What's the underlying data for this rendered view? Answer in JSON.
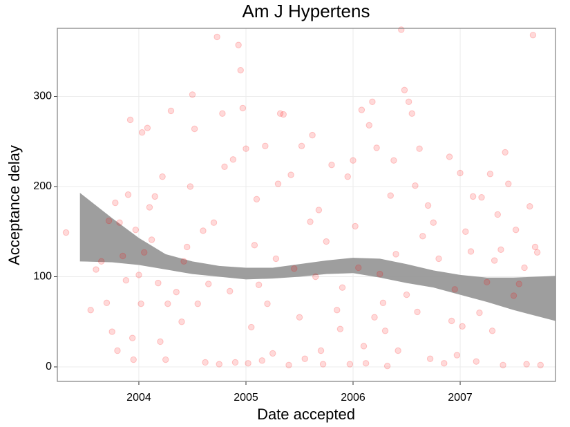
{
  "chart_data": {
    "type": "scatter",
    "title": "Am J Hypertens",
    "x_label": "Date accepted",
    "y_label": "Acceptance delay",
    "xlim": [
      2003.239,
      2007.89
    ],
    "ylim": [
      -16.1,
      375.5
    ],
    "xticks": [
      2004,
      2005,
      2006,
      2007
    ],
    "yticks": [
      0,
      100,
      200,
      300
    ],
    "grid": true,
    "series": [
      {
        "color": "#ff0000",
        "x": [
          2003.32,
          2003.55,
          2003.6,
          2003.65,
          2003.7,
          2003.72,
          2003.75,
          2003.78,
          2003.8,
          2003.82,
          2003.85,
          2003.88,
          2003.9,
          2003.92,
          2003.94,
          2003.95,
          2003.97,
          2004.0,
          2004.02,
          2004.03,
          2004.05,
          2004.08,
          2004.1,
          2004.12,
          2004.15,
          2004.18,
          2004.2,
          2004.22,
          2004.25,
          2004.27,
          2004.3,
          2004.35,
          2004.4,
          2004.42,
          2004.45,
          2004.48,
          2004.5,
          2004.52,
          2004.55,
          2004.6,
          2004.62,
          2004.65,
          2004.7,
          2004.73,
          2004.75,
          2004.78,
          2004.8,
          2004.85,
          2004.88,
          2004.9,
          2004.93,
          2004.95,
          2004.97,
          2005.0,
          2005.02,
          2005.05,
          2005.08,
          2005.1,
          2005.12,
          2005.15,
          2005.18,
          2005.2,
          2005.25,
          2005.28,
          2005.3,
          2005.32,
          2005.35,
          2005.4,
          2005.42,
          2005.45,
          2005.5,
          2005.52,
          2005.55,
          2005.6,
          2005.62,
          2005.65,
          2005.68,
          2005.7,
          2005.72,
          2005.75,
          2005.8,
          2005.85,
          2005.88,
          2005.9,
          2005.95,
          2005.97,
          2006.0,
          2006.02,
          2006.05,
          2006.08,
          2006.1,
          2006.12,
          2006.15,
          2006.18,
          2006.2,
          2006.22,
          2006.25,
          2006.28,
          2006.3,
          2006.32,
          2006.35,
          2006.38,
          2006.4,
          2006.42,
          2006.45,
          2006.48,
          2006.5,
          2006.52,
          2006.55,
          2006.58,
          2006.6,
          2006.62,
          2006.65,
          2006.7,
          2006.72,
          2006.75,
          2006.8,
          2006.85,
          2006.9,
          2006.92,
          2006.95,
          2006.97,
          2007.0,
          2007.02,
          2007.05,
          2007.1,
          2007.12,
          2007.15,
          2007.18,
          2007.2,
          2007.25,
          2007.28,
          2007.3,
          2007.32,
          2007.35,
          2007.38,
          2007.4,
          2007.42,
          2007.45,
          2007.5,
          2007.52,
          2007.55,
          2007.6,
          2007.62,
          2007.65,
          2007.68,
          2007.7,
          2007.72,
          2007.75
        ],
        "values": [
          149,
          63,
          108,
          117,
          71,
          162,
          39,
          182,
          18,
          160,
          123,
          96,
          191,
          274,
          32,
          8,
          152,
          102,
          70,
          260,
          127,
          265,
          177,
          141,
          189,
          93,
          28,
          211,
          8,
          70,
          284,
          83,
          50,
          117,
          133,
          200,
          302,
          264,
          70,
          151,
          5,
          92,
          160,
          366,
          3,
          281,
          222,
          84,
          230,
          5,
          357,
          329,
          287,
          242,
          4,
          44,
          135,
          186,
          91,
          7,
          245,
          70,
          15,
          120,
          203,
          281,
          280,
          2,
          213,
          109,
          55,
          245,
          9,
          161,
          257,
          100,
          174,
          18,
          3,
          139,
          224,
          63,
          42,
          88,
          211,
          3,
          229,
          156,
          110,
          285,
          23,
          4,
          268,
          294,
          55,
          243,
          103,
          71,
          40,
          1,
          190,
          229,
          125,
          18,
          374,
          307,
          80,
          294,
          281,
          201,
          61,
          242,
          145,
          179,
          9,
          160,
          120,
          4,
          233,
          51,
          86,
          13,
          215,
          45,
          150,
          128,
          189,
          6,
          60,
          188,
          94,
          214,
          40,
          118,
          169,
          130,
          2,
          238,
          203,
          79,
          152,
          92,
          110,
          3,
          178,
          368,
          133,
          127,
          2
        ]
      }
    ],
    "band": {
      "color": "#999999",
      "x": [
        2003.45,
        2003.75,
        2004.0,
        2004.25,
        2004.5,
        2004.75,
        2005.0,
        2005.25,
        2005.5,
        2005.75,
        2006.0,
        2006.25,
        2006.5,
        2006.75,
        2007.0,
        2007.25,
        2007.5,
        2007.89
      ],
      "upper": [
        193,
        165,
        143,
        125,
        117,
        112,
        110,
        110,
        114,
        118,
        121,
        120,
        114,
        107,
        102,
        99,
        99,
        101
      ],
      "lower": [
        117,
        116,
        113,
        108,
        103,
        100,
        97,
        98,
        100,
        103,
        104,
        99,
        93,
        88,
        80,
        72,
        63,
        51
      ]
    }
  }
}
